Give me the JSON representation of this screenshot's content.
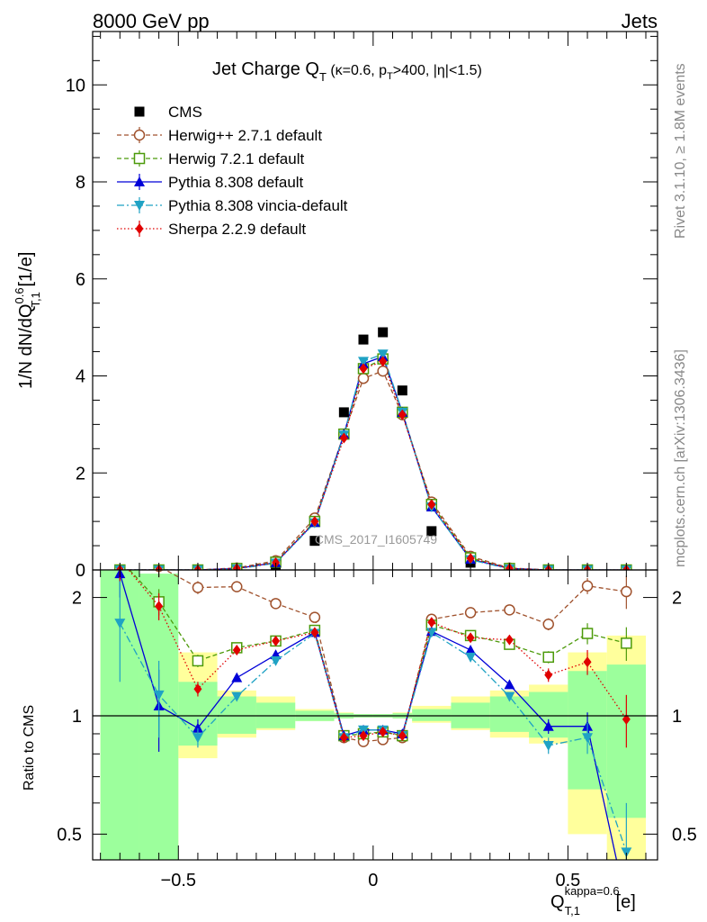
{
  "header": {
    "left": "8000 GeV pp",
    "right": "Jets"
  },
  "side": {
    "rivet": "Rivet 3.1.10, ≥ 1.8M events",
    "source": "mcplots.cern.ch [arXiv:1306.3436]"
  },
  "watermark": "CMS_2017_I1605749",
  "title": {
    "main": "Jet Charge Q",
    "main_sub": "T",
    "cut_open": " (κ=0.6, p",
    "cut_sub": "T",
    "cut_close": ">400, |η|<1.5)"
  },
  "axes": {
    "ylabel_top": "1/N dN/dQ",
    "ylabel_top_sup": "0.6",
    "ylabel_top_sub": "T,1",
    "ylabel_top_unit": " [1/e]",
    "ylabel_ratio": "Ratio to CMS",
    "xlabel": "Q",
    "xlabel_sup": "kappa=0.6",
    "xlabel_sub": "T,1",
    "xlabel_unit": " [e]"
  },
  "colors": {
    "cms": "#000000",
    "herwigpp": "#a0522d",
    "herwig7": "#4c9a0a",
    "pythia": "#0000d8",
    "vincia": "#1fa2c4",
    "sherpa": "#e00000",
    "band_inner": "#9cff9c",
    "band_outer": "#ffff9c"
  },
  "chart_data": [
    {
      "type": "scatter",
      "panel": "main",
      "xlim": [
        -0.72,
        0.73
      ],
      "ylim": [
        0,
        11.1
      ],
      "yticks": [
        0,
        2,
        4,
        6,
        8,
        10
      ],
      "legend_position": "top-left",
      "grid": false,
      "series": [
        {
          "name": "CMS",
          "key": "cms",
          "x": [
            -0.65,
            -0.55,
            -0.45,
            -0.35,
            -0.25,
            -0.15,
            -0.075,
            -0.025,
            0.025,
            0.075,
            0.15,
            0.25,
            0.35,
            0.45,
            0.55,
            0.65
          ],
          "y": [
            0.0,
            0.0,
            0.0,
            0.02,
            0.1,
            0.6,
            3.25,
            4.75,
            4.9,
            3.7,
            0.8,
            0.15,
            0.02,
            0.0,
            0.0,
            0.0
          ]
        },
        {
          "name": "Herwig++ 2.7.1 default",
          "key": "herwigpp",
          "x": [
            -0.65,
            -0.55,
            -0.45,
            -0.35,
            -0.25,
            -0.15,
            -0.075,
            -0.025,
            0.025,
            0.075,
            0.15,
            0.25,
            0.35,
            0.45,
            0.55,
            0.65
          ],
          "y": [
            0.0,
            0.0,
            0.0,
            0.04,
            0.19,
            1.07,
            2.8,
            3.95,
            4.1,
            3.2,
            1.4,
            0.28,
            0.04,
            0.0,
            0.0,
            0.0
          ]
        },
        {
          "name": "Herwig 7.2.1 default",
          "key": "herwig7",
          "x": [
            -0.65,
            -0.55,
            -0.45,
            -0.35,
            -0.25,
            -0.15,
            -0.075,
            -0.025,
            0.025,
            0.075,
            0.15,
            0.25,
            0.35,
            0.45,
            0.55,
            0.65
          ],
          "y": [
            0.0,
            0.0,
            0.0,
            0.03,
            0.16,
            1.0,
            2.8,
            4.15,
            4.35,
            3.25,
            1.35,
            0.25,
            0.03,
            0.0,
            0.0,
            0.0
          ]
        },
        {
          "name": "Pythia 8.308 default",
          "key": "pythia",
          "x": [
            -0.65,
            -0.55,
            -0.45,
            -0.35,
            -0.25,
            -0.15,
            -0.075,
            -0.025,
            0.025,
            0.075,
            0.15,
            0.25,
            0.35,
            0.45,
            0.55,
            0.65
          ],
          "y": [
            0.0,
            0.0,
            0.0,
            0.03,
            0.15,
            0.98,
            2.8,
            4.25,
            4.4,
            3.25,
            1.3,
            0.22,
            0.03,
            0.0,
            0.0,
            0.0
          ]
        },
        {
          "name": "Pythia 8.308 vincia-default",
          "key": "vincia",
          "x": [
            -0.65,
            -0.55,
            -0.45,
            -0.35,
            -0.25,
            -0.15,
            -0.075,
            -0.025,
            0.025,
            0.075,
            0.15,
            0.25,
            0.35,
            0.45,
            0.55,
            0.65
          ],
          "y": [
            0.0,
            0.0,
            0.0,
            0.02,
            0.14,
            0.97,
            2.78,
            4.3,
            4.45,
            3.25,
            1.3,
            0.21,
            0.02,
            0.0,
            0.0,
            0.0
          ]
        },
        {
          "name": "Sherpa 2.2.9 default",
          "key": "sherpa",
          "x": [
            -0.65,
            -0.55,
            -0.45,
            -0.35,
            -0.25,
            -0.15,
            -0.075,
            -0.025,
            0.025,
            0.075,
            0.15,
            0.25,
            0.35,
            0.45,
            0.55,
            0.65
          ],
          "y": [
            0.0,
            0.0,
            0.0,
            0.03,
            0.15,
            1.0,
            2.72,
            4.15,
            4.3,
            3.2,
            1.35,
            0.24,
            0.03,
            0.0,
            0.0,
            0.0
          ]
        }
      ]
    },
    {
      "type": "line",
      "panel": "ratio",
      "xlim": [
        -0.72,
        0.73
      ],
      "ylim": [
        0.43,
        2.35
      ],
      "log_y": true,
      "yticks": [
        0.5,
        1,
        2
      ],
      "xticks": [
        -0.5,
        0,
        0.5
      ],
      "reference_line": 1,
      "bands": {
        "edges": [
          -0.7,
          -0.6,
          -0.5,
          -0.4,
          -0.3,
          -0.2,
          -0.1,
          -0.05,
          0.0,
          0.05,
          0.1,
          0.2,
          0.3,
          0.4,
          0.5,
          0.6,
          0.7
        ],
        "inner": [
          [
            0.36,
            2.8
          ],
          [
            0.36,
            2.3
          ],
          [
            0.84,
            1.22
          ],
          [
            0.9,
            1.12
          ],
          [
            0.93,
            1.08
          ],
          [
            0.97,
            1.03
          ],
          [
            0.985,
            1.015
          ],
          [
            0.99,
            1.01
          ],
          [
            0.99,
            1.01
          ],
          [
            0.985,
            1.015
          ],
          [
            0.97,
            1.04
          ],
          [
            0.93,
            1.08
          ],
          [
            0.91,
            1.12
          ],
          [
            0.88,
            1.15
          ],
          [
            0.65,
            1.3
          ],
          [
            0.55,
            1.35
          ]
        ],
        "outer": [
          [
            0.36,
            2.8
          ],
          [
            0.36,
            1.4
          ],
          [
            0.78,
            1.45
          ],
          [
            0.88,
            1.16
          ],
          [
            0.92,
            1.12
          ],
          [
            0.97,
            1.04
          ],
          [
            0.985,
            1.02
          ],
          [
            0.99,
            1.01
          ],
          [
            0.99,
            1.01
          ],
          [
            0.985,
            1.02
          ],
          [
            0.96,
            1.06
          ],
          [
            0.92,
            1.12
          ],
          [
            0.88,
            1.16
          ],
          [
            0.85,
            1.2
          ],
          [
            0.5,
            1.45
          ],
          [
            0.4,
            1.6
          ]
        ]
      },
      "series": [
        {
          "name": "Herwig++ 2.7.1 default",
          "key": "herwigpp",
          "x": [
            -0.65,
            -0.55,
            -0.45,
            -0.35,
            -0.25,
            -0.15,
            -0.075,
            -0.025,
            0.025,
            0.075,
            0.15,
            0.25,
            0.35,
            0.45,
            0.55,
            0.65
          ],
          "y": [
            2.55,
            2.4,
            2.12,
            2.13,
            1.93,
            1.78,
            0.88,
            0.86,
            0.87,
            0.88,
            1.76,
            1.83,
            1.86,
            1.71,
            2.14,
            2.07
          ],
          "err": [
            0.3,
            0.15,
            0.08,
            0.04,
            0.03,
            0.02,
            0.01,
            0.01,
            0.01,
            0.01,
            0.02,
            0.03,
            0.04,
            0.06,
            0.1,
            0.2
          ]
        },
        {
          "name": "Herwig 7.2.1 default",
          "key": "herwig7",
          "x": [
            -0.65,
            -0.55,
            -0.45,
            -0.35,
            -0.25,
            -0.15,
            -0.075,
            -0.025,
            0.025,
            0.075,
            0.15,
            0.25,
            0.35,
            0.45,
            0.55,
            0.65
          ],
          "y": [
            2.5,
            1.95,
            1.38,
            1.49,
            1.55,
            1.65,
            0.89,
            0.9,
            0.91,
            0.89,
            1.7,
            1.6,
            1.52,
            1.41,
            1.62,
            1.53
          ],
          "err": [
            0.3,
            0.15,
            0.05,
            0.04,
            0.03,
            0.02,
            0.01,
            0.01,
            0.01,
            0.01,
            0.02,
            0.03,
            0.04,
            0.05,
            0.1,
            0.15
          ]
        },
        {
          "name": "Pythia 8.308 default",
          "key": "pythia",
          "x": [
            -0.65,
            -0.55,
            -0.45,
            -0.35,
            -0.25,
            -0.15,
            -0.075,
            -0.025,
            0.025,
            0.075,
            0.15,
            0.25,
            0.35,
            0.45,
            0.55,
            0.65
          ],
          "y": [
            2.3,
            1.06,
            0.93,
            1.25,
            1.43,
            1.63,
            0.89,
            0.92,
            0.92,
            0.9,
            1.64,
            1.47,
            1.2,
            0.94,
            0.94,
            0.33
          ],
          "err": [
            0.3,
            0.25,
            0.05,
            0.03,
            0.03,
            0.02,
            0.01,
            0.01,
            0.01,
            0.01,
            0.02,
            0.03,
            0.03,
            0.04,
            0.08,
            0.1
          ]
        },
        {
          "name": "Pythia 8.308 vincia-default",
          "key": "vincia",
          "x": [
            -0.65,
            -0.55,
            -0.45,
            -0.35,
            -0.25,
            -0.15,
            -0.075,
            -0.025,
            0.025,
            0.075,
            0.15,
            0.25,
            0.35,
            0.45,
            0.55,
            0.65
          ],
          "y": [
            1.72,
            1.13,
            0.88,
            1.12,
            1.38,
            1.62,
            0.88,
            0.92,
            0.92,
            0.89,
            1.63,
            1.41,
            1.12,
            0.84,
            0.88,
            0.45
          ],
          "err": [
            0.5,
            0.25,
            0.05,
            0.03,
            0.03,
            0.02,
            0.01,
            0.01,
            0.01,
            0.01,
            0.02,
            0.03,
            0.03,
            0.04,
            0.08,
            0.15
          ]
        },
        {
          "name": "Sherpa 2.2.9 default",
          "key": "sherpa",
          "x": [
            -0.65,
            -0.55,
            -0.45,
            -0.35,
            -0.25,
            -0.15,
            -0.075,
            -0.025,
            0.025,
            0.075,
            0.15,
            0.25,
            0.35,
            0.45,
            0.55,
            0.65
          ],
          "y": [
            2.5,
            1.9,
            1.17,
            1.47,
            1.55,
            1.63,
            0.88,
            0.89,
            0.91,
            0.89,
            1.73,
            1.58,
            1.56,
            1.27,
            1.37,
            0.98
          ],
          "err": [
            0.3,
            0.15,
            0.05,
            0.04,
            0.03,
            0.02,
            0.01,
            0.01,
            0.01,
            0.01,
            0.02,
            0.03,
            0.04,
            0.05,
            0.1,
            0.15
          ]
        }
      ]
    }
  ]
}
